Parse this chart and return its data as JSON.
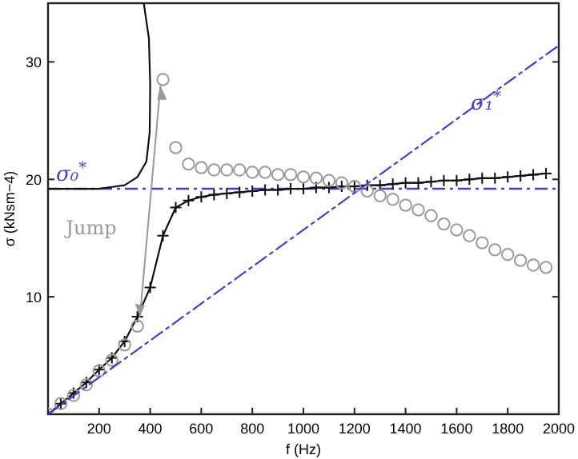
{
  "chart_data": {
    "type": "line",
    "xlabel": "f (Hz)",
    "ylabel": "σ (kNsm−4)",
    "xlim": [
      0,
      2000
    ],
    "ylim": [
      0,
      35
    ],
    "xticks": [
      200,
      400,
      600,
      800,
      1000,
      1200,
      1400,
      1600,
      1800,
      2000
    ],
    "yticks": [
      10,
      20,
      30
    ],
    "grid": false,
    "series": [
      {
        "color": "#111111",
        "marker": "cross",
        "x": [
          0,
          50,
          100,
          150,
          200,
          250,
          300,
          350,
          400,
          450,
          500,
          550,
          600,
          650,
          700,
          750,
          800,
          850,
          900,
          950,
          1000,
          1050,
          1100,
          1150,
          1200,
          1250,
          1300,
          1350,
          1400,
          1450,
          1500,
          1550,
          1600,
          1650,
          1700,
          1750,
          1800,
          1850,
          1900,
          1950
        ],
        "values": [
          0,
          0.9,
          1.8,
          2.7,
          3.8,
          4.8,
          6.2,
          8.3,
          10.8,
          15.2,
          17.6,
          18.2,
          18.5,
          18.7,
          18.8,
          18.9,
          19.0,
          19.1,
          19.1,
          19.2,
          19.2,
          19.3,
          19.3,
          19.4,
          19.4,
          19.5,
          19.5,
          19.6,
          19.7,
          19.7,
          19.8,
          19.9,
          19.9,
          20.0,
          20.1,
          20.1,
          20.2,
          20.3,
          20.4,
          20.5
        ]
      },
      {
        "type": "scatter",
        "color": "#9a9a9a",
        "marker": "circle",
        "x": [
          0,
          50,
          100,
          150,
          200,
          250,
          300,
          350,
          450,
          500,
          550,
          600,
          650,
          700,
          750,
          800,
          850,
          900,
          950,
          1000,
          1050,
          1100,
          1150,
          1200,
          1250,
          1300,
          1350,
          1400,
          1450,
          1500,
          1550,
          1600,
          1650,
          1700,
          1750,
          1800,
          1850,
          1900,
          1950
        ],
        "values": [
          0,
          0.9,
          1.6,
          2.5,
          3.7,
          4.6,
          5.9,
          7.5,
          28.5,
          22.7,
          21.3,
          21.0,
          20.8,
          20.8,
          20.8,
          20.6,
          20.6,
          20.4,
          20.4,
          20.2,
          20.1,
          19.9,
          19.7,
          19.4,
          19.0,
          18.6,
          18.3,
          17.8,
          17.4,
          16.9,
          16.2,
          15.7,
          15.2,
          14.6,
          14.0,
          13.6,
          13.1,
          12.7,
          12.5
        ]
      },
      {
        "color": "#111111",
        "marker": "none",
        "x": [
          0,
          200,
          300,
          350,
          385,
          398,
          400,
          395,
          375
        ],
        "values": [
          19.2,
          19.2,
          19.5,
          20.2,
          21.5,
          24,
          28,
          32,
          35
        ]
      },
      {
        "name": "σ₁$^{*}$",
        "color": "#4040d0",
        "marker": "none",
        "line_style": "dashed",
        "x": [
          0,
          2000
        ],
        "values": [
          0,
          31.4
        ]
      }
    ],
    "ref_lines": [
      {
        "axis": "y",
        "value": 19.2,
        "label": "σ₀$^{*}$",
        "color": "#4040d0",
        "line_style": "dashed"
      }
    ],
    "annotations": [
      "Jump"
    ]
  }
}
